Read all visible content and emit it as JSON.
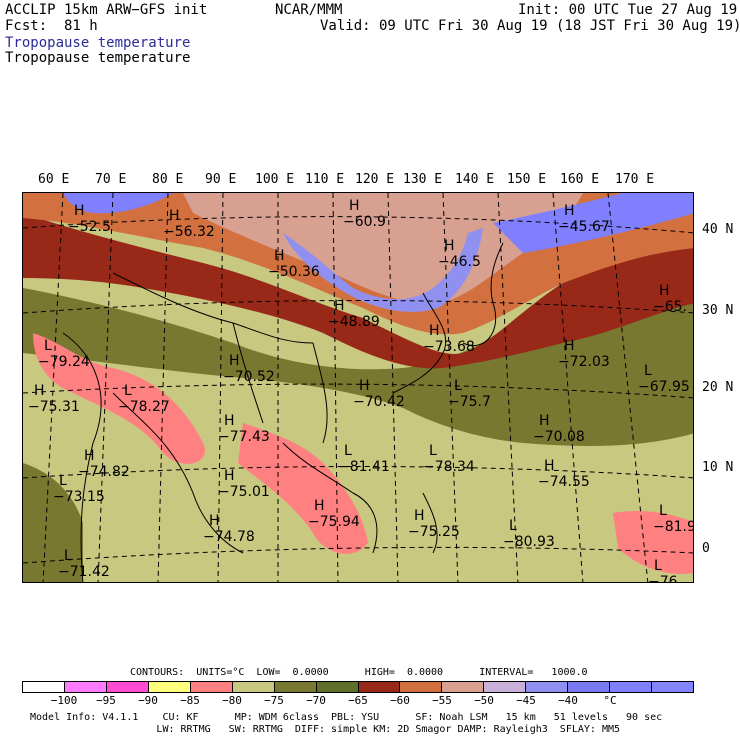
{
  "header": {
    "model": "ACCLIP 15km ARW−GFS init",
    "org": "NCAR/MMM",
    "init": "Init: 00 UTC Tue 27 Aug 19",
    "fcst": "Fcst:  81 h",
    "valid": "Valid: 09 UTC Fri 30 Aug 19 (18 JST Fri 30 Aug 19)",
    "field1": "Tropopause temperature",
    "field2": "Tropopause temperature"
  },
  "lon_labels": [
    "60 E",
    "70 E",
    "80 E",
    "90 E",
    "100 E",
    "110 E",
    "120 E",
    "130 E",
    "140 E",
    "150 E",
    "160 E",
    "170 E"
  ],
  "lat_labels": [
    "40 N",
    "30 N",
    "20 N",
    "10 N",
    "0"
  ],
  "map_labels": [
    {
      "sym": "H",
      "val": "−52.5"
    },
    {
      "sym": "H",
      "val": "−56.32"
    },
    {
      "sym": "H",
      "val": "−60.9"
    },
    {
      "sym": "H",
      "val": "−45.67"
    },
    {
      "sym": "H",
      "val": "−50.36"
    },
    {
      "sym": "H",
      "val": "−46.5"
    },
    {
      "sym": "H",
      "val": "−48.89"
    },
    {
      "sym": "H",
      "val": "−65."
    },
    {
      "sym": "L",
      "val": "−79.24"
    },
    {
      "sym": "H",
      "val": "−73.68"
    },
    {
      "sym": "H",
      "val": "−72.03"
    },
    {
      "sym": "H",
      "val": "−70.52"
    },
    {
      "sym": "L",
      "val": "−67.95"
    },
    {
      "sym": "H",
      "val": "−75.31"
    },
    {
      "sym": "L",
      "val": "−78.27"
    },
    {
      "sym": "H",
      "val": "−70.42"
    },
    {
      "sym": "L",
      "val": "−75.7"
    },
    {
      "sym": "H",
      "val": "−77.43"
    },
    {
      "sym": "H",
      "val": "−70.08"
    },
    {
      "sym": "H",
      "val": "−74.82"
    },
    {
      "sym": "L",
      "val": "−81.41"
    },
    {
      "sym": "L",
      "val": "−78.34"
    },
    {
      "sym": "H",
      "val": "−74.55"
    },
    {
      "sym": "H",
      "val": "−75.01"
    },
    {
      "sym": "L",
      "val": "−73.15"
    },
    {
      "sym": "H",
      "val": "−75.94"
    },
    {
      "sym": "H",
      "val": "−74.78"
    },
    {
      "sym": "H",
      "val": "−75.25"
    },
    {
      "sym": "L",
      "val": "−80.93"
    },
    {
      "sym": "L",
      "val": "−81.9"
    },
    {
      "sym": "L",
      "val": "−71.42"
    },
    {
      "sym": "L",
      "val": "−76."
    }
  ],
  "contours": "CONTOURS:  UNITS=°C  LOW=  0.0000      HIGH=  0.0000      INTERVAL=   1000.0",
  "colorbar": {
    "colors": [
      "#ffffff",
      "#ff7cff",
      "#ff4bd2",
      "#ffff7d",
      "#ff8080",
      "#c8c880",
      "#787830",
      "#607028",
      "#982818",
      "#d27040",
      "#d8a090",
      "#c8b0d8",
      "#9090f0",
      "#7878f0",
      "#8080ff",
      "#8484ff"
    ],
    "ticks": [
      "−100",
      "−95",
      "−90",
      "−85",
      "−80",
      "−75",
      "−70",
      "−65",
      "−60",
      "−55",
      "−50",
      "−45",
      "−40",
      "°C"
    ]
  },
  "footer": {
    "line1": "Model Info: V4.1.1    CU: KF      MP: WDM 6class  PBL: YSU      SF: Noah LSM   15 km   51 levels   90 sec",
    "line2": "                     LW: RRTMG   SW: RRTMG  DIFF: simple KM: 2D Smagor DAMP: Rayleigh3  SFLAY: MM5"
  }
}
